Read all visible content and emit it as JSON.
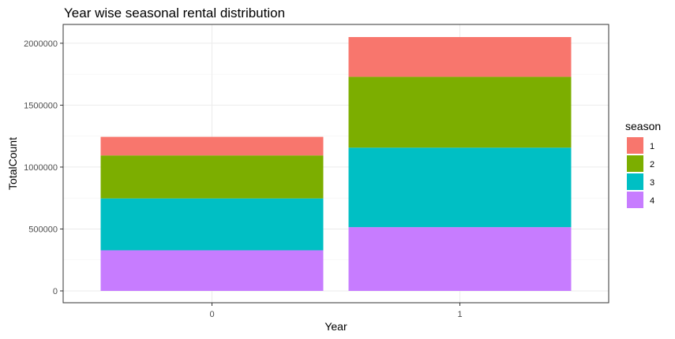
{
  "chart_data": {
    "type": "bar",
    "stacked": true,
    "title": "Year wise seasonal rental distribution",
    "xlabel": "Year",
    "ylabel": "TotalCount",
    "categories": [
      "0",
      "1"
    ],
    "ylim": [
      0,
      2050000
    ],
    "yticks": [
      0,
      500000,
      1000000,
      1500000,
      2000000
    ],
    "ytick_labels": [
      "0",
      "500000",
      "1000000",
      "1500000",
      "2000000"
    ],
    "grid": true,
    "legend": {
      "title": "season",
      "position": "right"
    },
    "series": [
      {
        "name": "1",
        "color": "#F8766D",
        "values": [
          150000,
          321000
        ]
      },
      {
        "name": "2",
        "color": "#7CAE00",
        "values": [
          347000,
          572000
        ]
      },
      {
        "name": "3",
        "color": "#00BFC4",
        "values": [
          419000,
          642000
        ]
      },
      {
        "name": "4",
        "color": "#C77CFF",
        "values": [
          328000,
          515000
        ]
      }
    ],
    "stack_order_bottom_to_top": [
      "4",
      "3",
      "2",
      "1"
    ]
  }
}
